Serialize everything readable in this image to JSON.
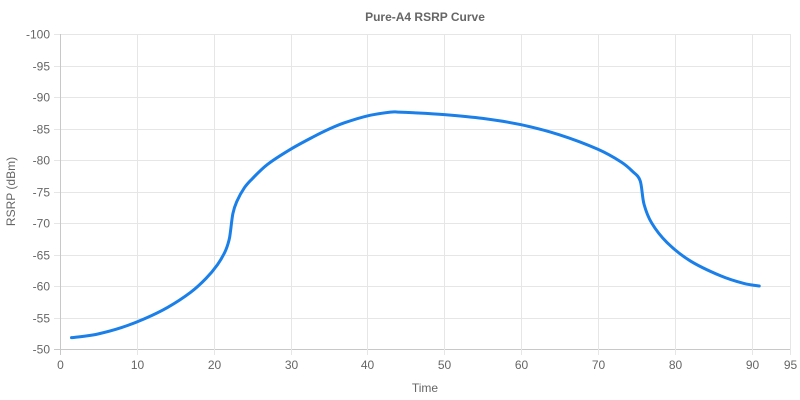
{
  "chart_data": {
    "type": "line",
    "title": "Pure-A4 RSRP Curve",
    "xlabel": "Time",
    "ylabel": "RSRP (dBm)",
    "xlim": [
      0,
      95
    ],
    "ylim": [
      -100,
      -50
    ],
    "y_axis_reversed": true,
    "x_ticks": [
      0,
      10,
      20,
      30,
      40,
      50,
      60,
      70,
      80,
      90,
      95
    ],
    "y_ticks": [
      -100,
      -95,
      -90,
      -85,
      -80,
      -75,
      -70,
      -65,
      -60,
      -55,
      -50
    ],
    "grid": true,
    "legend": "none",
    "series_color": "#1a7fe8",
    "series": [
      {
        "x": [
          1.5,
          3,
          5,
          8,
          11,
          14,
          17,
          19,
          20.5,
          21.5,
          22,
          22.2,
          22.5,
          23,
          24,
          25,
          27,
          30,
          33,
          35,
          37,
          40,
          43,
          44,
          46,
          50,
          55,
          60,
          65,
          70,
          73,
          74.5,
          75.5,
          76,
          77,
          79,
          82,
          86,
          89,
          91
        ],
        "y": [
          -51.8,
          -52,
          -52.4,
          -53.4,
          -54.8,
          -56.6,
          -59,
          -61.2,
          -63.4,
          -65.5,
          -67.3,
          -68.8,
          -71.5,
          -73.4,
          -75.6,
          -77,
          -79.3,
          -81.7,
          -83.7,
          -84.9,
          -85.9,
          -87,
          -87.6,
          -87.6,
          -87.5,
          -87.2,
          -86.6,
          -85.6,
          -84,
          -81.7,
          -79.7,
          -78.2,
          -76.7,
          -73,
          -70,
          -66.9,
          -64,
          -61.6,
          -60.4,
          -60
        ]
      }
    ]
  }
}
